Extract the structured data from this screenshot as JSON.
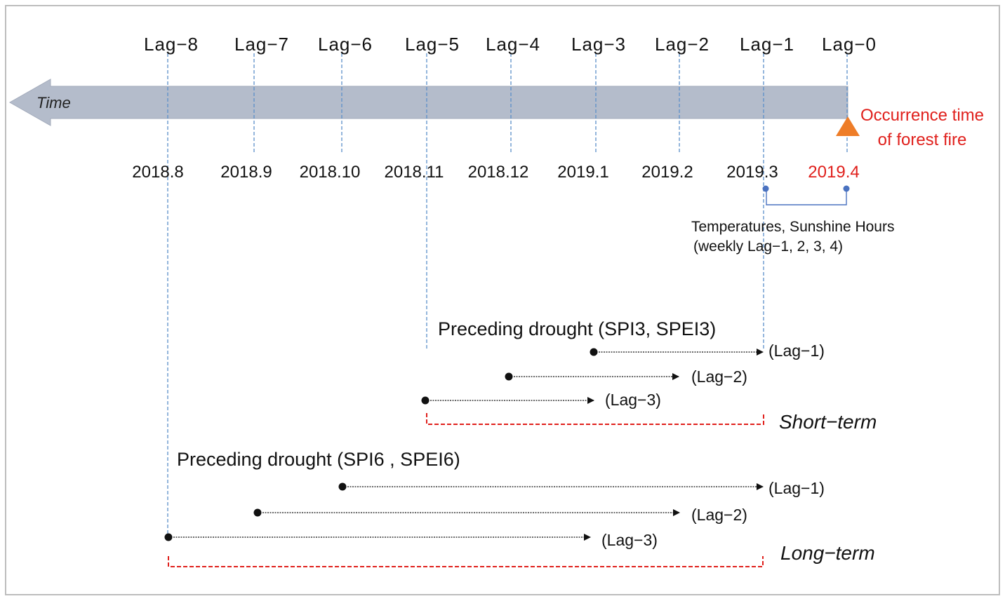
{
  "time_label": "Time",
  "lags": [
    "Lag−8",
    "Lag−7",
    "Lag−6",
    "Lag−5",
    "Lag−4",
    "Lag−3",
    "Lag−2",
    "Lag−1",
    "Lag−0"
  ],
  "dates": [
    "2018.8",
    "2018.9",
    "2018.10",
    "2018.11",
    "2018.12",
    "2019.1",
    "2019.2",
    "2019.3",
    "2019.4"
  ],
  "occurrence": {
    "line1": "Occurrence time",
    "line2": "of forest fire"
  },
  "weekly_note": {
    "line1": "Temperatures, Sunshine Hours",
    "line2": "(weekly Lag−1, 2, 3, 4)"
  },
  "short_term": {
    "title": "Preceding drought (SPI3, SPEI3)",
    "lag_labels": [
      "(Lag−1)",
      "(Lag−2)",
      "(Lag−3)"
    ],
    "term_label": "Short−term"
  },
  "long_term": {
    "title": "Preceding drought (SPI6 , SPEI6)",
    "lag_labels": [
      "(Lag−1)",
      "(Lag−2)",
      "(Lag−3)"
    ],
    "term_label": "Long−term"
  },
  "colors": {
    "timeline_arrow": "#b4bccb",
    "guide_line": "#5b8fc9",
    "bracket_red": "#e0201c",
    "occurrence_marker": "#ee7d28",
    "point_blue": "#4a72c0"
  }
}
